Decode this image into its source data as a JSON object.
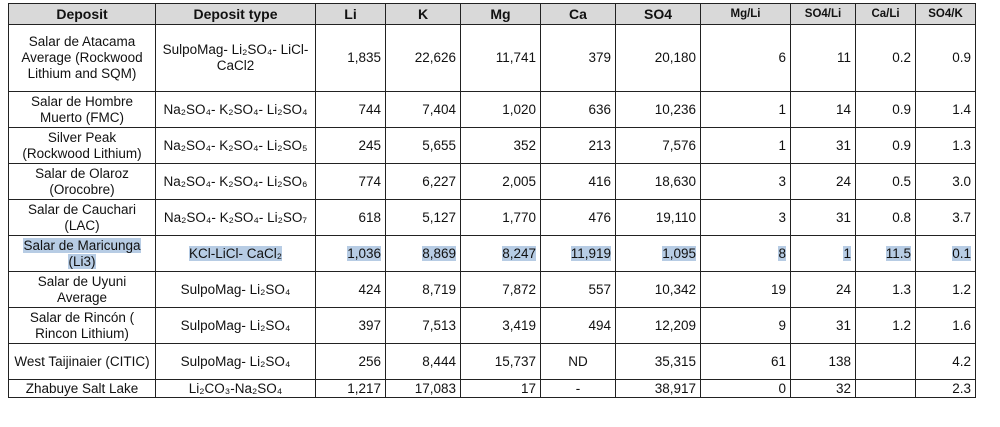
{
  "table": {
    "header": [
      "Deposit",
      "Deposit type",
      "Li",
      "K",
      "Mg",
      "Ca",
      "SO4",
      "Mg/Li",
      "SO4/Li",
      "Ca/Li",
      "SO4/K"
    ],
    "highlight_row": 5,
    "rows": [
      [
        "Salar de Atacama Average (Rockwood Lithium and SQM)",
        "SulpoMag- Li₂SO₄- LiCl- CaCl2",
        "1,835",
        "22,626",
        "11,741",
        "379",
        "20,180",
        "6",
        "11",
        "0.2",
        "0.9"
      ],
      [
        "Salar de Hombre Muerto (FMC)",
        "Na₂SO₄- K₂SO₄- Li₂SO₄",
        "744",
        "7,404",
        "1,020",
        "636",
        "10,236",
        "1",
        "14",
        "0.9",
        "1.4"
      ],
      [
        "Silver Peak (Rockwood Lithium)",
        "Na₂SO₄- K₂SO₄- Li₂SO₅",
        "245",
        "5,655",
        "352",
        "213",
        "7,576",
        "1",
        "31",
        "0.9",
        "1.3"
      ],
      [
        "Salar de Olaroz (Orocobre)",
        "Na₂SO₄- K₂SO₄- Li₂SO₆",
        "774",
        "6,227",
        "2,005",
        "416",
        "18,630",
        "3",
        "24",
        "0.5",
        "3.0"
      ],
      [
        "Salar de Cauchari (LAC)",
        "Na₂SO₄- K₂SO₄- Li₂SO₇",
        "618",
        "5,127",
        "1,770",
        "476",
        "19,110",
        "3",
        "31",
        "0.8",
        "3.7"
      ],
      [
        "Salar de Maricunga (Li3)",
        "KCl-LiCl- CaCl₂",
        "1,036",
        "8,869",
        "8,247",
        "11,919",
        "1,095",
        "8",
        "1",
        "11.5",
        "0.1"
      ],
      [
        "Salar de Uyuni Average",
        "SulpoMag- Li₂SO₄",
        "424",
        "8,719",
        "7,872",
        "557",
        "10,342",
        "19",
        "24",
        "1.3",
        "1.2"
      ],
      [
        "Salar de Rincón ( Rincon Lithium)",
        "SulpoMag- Li₂SO₄",
        "397",
        "7,513",
        "3,419",
        "494",
        "12,209",
        "9",
        "31",
        "1.2",
        "1.6"
      ],
      [
        "West Taijinaier (CITIC)",
        "SulpoMag- Li₂SO₄",
        "256",
        "8,444",
        "15,737",
        "ND",
        "35,315",
        "61",
        "138",
        null,
        "4.2"
      ],
      [
        "Zhabuye Salt Lake",
        "Li₂CO₃-Na₂SO₄",
        "1,217",
        "17,083",
        "17",
        "-",
        "38,917",
        "0",
        "32",
        null,
        "2.3"
      ]
    ]
  }
}
